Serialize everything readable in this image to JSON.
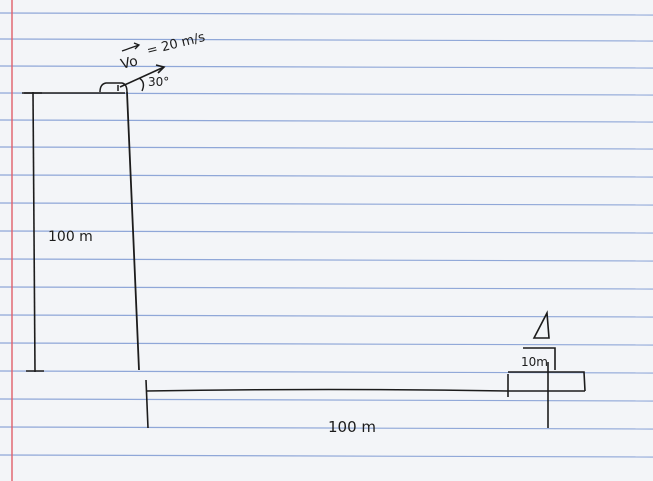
{
  "sheet": {
    "paper_color": "#f3f5f8",
    "rule_color": "#8fa7d8",
    "margin_color": "#e0606a",
    "ink_color": "#1c1c1c"
  },
  "diagram": {
    "velocity_label": "V⃗o = 20 m/s",
    "velocity_vector_symbol": "Vo",
    "velocity_value": "= 20 m/s",
    "angle_label": "30°",
    "cliff_height_label": "100 m",
    "horizontal_distance_label": "100 m",
    "target_height_label": "10m"
  }
}
